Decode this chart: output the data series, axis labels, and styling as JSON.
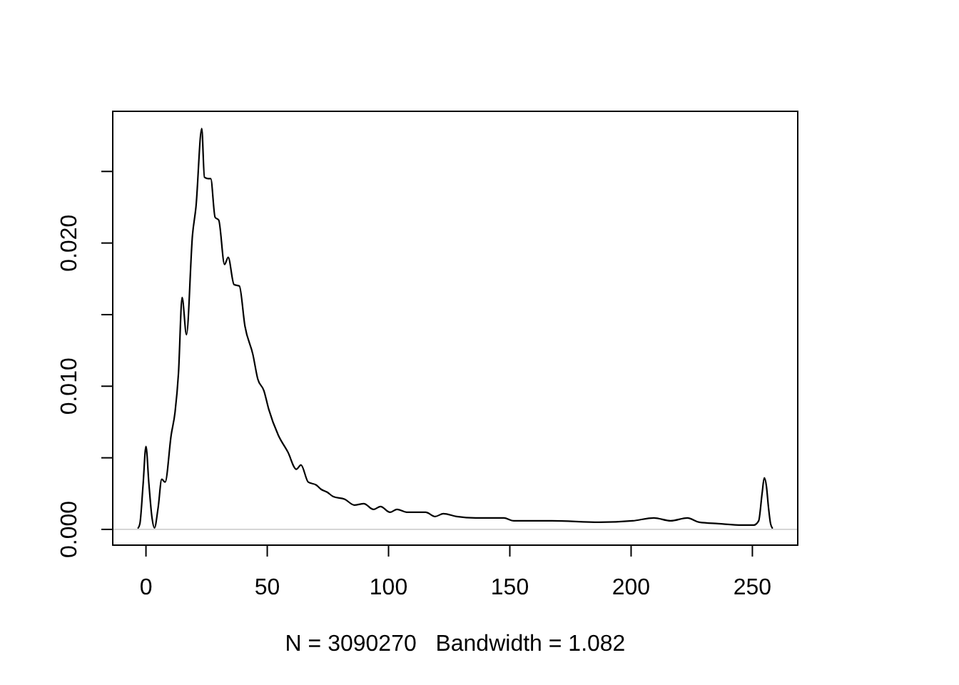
{
  "chart_data": {
    "type": "line",
    "xlabel": "N = 3090270   Bandwidth = 1.082",
    "xlim": [
      -13.7,
      268.7
    ],
    "ylim": [
      -0.0011,
      0.0292
    ],
    "xticks": [
      0,
      50,
      100,
      150,
      200,
      250
    ],
    "yticks": [
      {
        "value": 0,
        "label": "0.000"
      },
      {
        "value": 0.005,
        "label": null
      },
      {
        "value": 0.01,
        "label": "0.010"
      },
      {
        "value": 0.015,
        "label": null
      },
      {
        "value": 0.02,
        "label": "0.020"
      },
      {
        "value": 0.025,
        "label": null
      }
    ],
    "ref_lines": [
      {
        "axis": "y",
        "value": 0,
        "color": "#bebebe"
      }
    ],
    "x": [
      -3.2,
      -2.5,
      -1.2,
      0,
      1.2,
      2.5,
      3.5,
      5,
      6.5,
      7.9,
      10.4,
      12,
      13.4,
      14.9,
      16.7,
      19.2,
      20.6,
      23,
      24.1,
      25.7,
      26.7,
      28.5,
      30,
      32.4,
      33.9,
      36.3,
      38.5,
      40.8,
      44.1,
      46.1,
      48.6,
      50.6,
      54.5,
      58.5,
      62,
      63.9,
      66.9,
      70.2,
      72.2,
      74.7,
      77.1,
      82,
      85.9,
      89.8,
      93.8,
      96.7,
      100.6,
      103.5,
      107.5,
      115.3,
      119.2,
      122.6,
      128.1,
      135.9,
      147.6,
      151.6,
      167.3,
      186.9,
      200.6,
      209.4,
      216.3,
      223.2,
      228.1,
      236,
      245.7,
      250.6,
      252.6,
      254,
      254.9,
      255.8,
      256.6,
      257.5,
      258.2
    ],
    "series": [
      {
        "color": "#000000",
        "values": [
          0.0001,
          0.0004,
          0.0031,
          0.0058,
          0.0032,
          0.0008,
          0.0001,
          0.0015,
          0.0035,
          0.0033,
          0.0066,
          0.0082,
          0.0109,
          0.0162,
          0.0136,
          0.0206,
          0.0225,
          0.028,
          0.0246,
          0.0245,
          0.0245,
          0.0218,
          0.0216,
          0.0185,
          0.019,
          0.0171,
          0.017,
          0.0142,
          0.0122,
          0.0105,
          0.0097,
          0.0084,
          0.0066,
          0.0054,
          0.0042,
          0.0045,
          0.0033,
          0.0031,
          0.0028,
          0.0026,
          0.0023,
          0.0021,
          0.0017,
          0.0018,
          0.0014,
          0.0016,
          0.0012,
          0.0014,
          0.0012,
          0.0012,
          0.0009,
          0.0011,
          0.0009,
          0.0008,
          0.0008,
          0.0006,
          0.0006,
          0.0005,
          0.0006,
          0.0008,
          0.0006,
          0.0008,
          0.0005,
          0.0004,
          0.0003,
          0.0003,
          0.0006,
          0.0025,
          0.0036,
          0.003,
          0.0016,
          0.0004,
          0.0001
        ]
      }
    ]
  }
}
